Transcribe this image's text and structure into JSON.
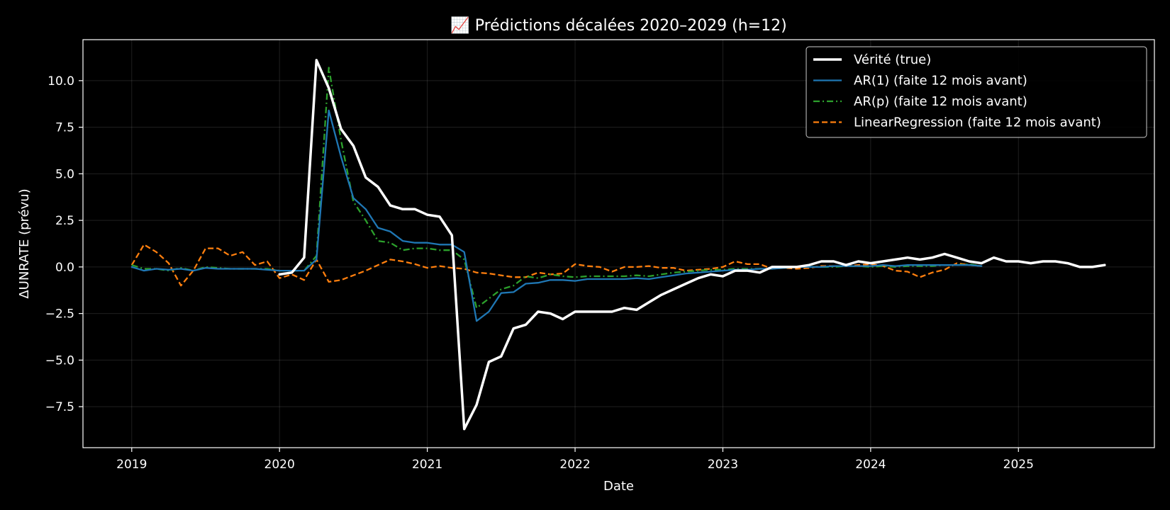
{
  "chart_data": {
    "type": "line",
    "title": "📈 Prédictions décalées 2020–2029 (h=12)",
    "xlabel": "Date",
    "ylabel": "ΔUNRATE (prévu)",
    "xlim": [
      2018.67,
      2025.92
    ],
    "ylim": [
      -9.7,
      12.2
    ],
    "xticks": [
      2019,
      2020,
      2021,
      2022,
      2023,
      2024,
      2025
    ],
    "xtick_labels": [
      "2019",
      "2020",
      "2021",
      "2022",
      "2023",
      "2024",
      "2025"
    ],
    "yticks": [
      -7.5,
      -5.0,
      -2.5,
      0.0,
      2.5,
      5.0,
      7.5,
      10.0
    ],
    "ytick_labels": [
      "−7.5",
      "−5.0",
      "−2.5",
      "0.0",
      "2.5",
      "5.0",
      "7.5",
      "10.0"
    ],
    "grid": true,
    "legend_position": "top-right",
    "series": [
      {
        "name": "Vérité (true)",
        "color": "#ffffff",
        "style": "solid",
        "x_start": 2020.0,
        "x_step": 0.0833333,
        "values": [
          -0.4,
          -0.3,
          0.5,
          11.1,
          9.6,
          7.4,
          6.5,
          4.8,
          4.3,
          3.3,
          3.1,
          3.1,
          2.8,
          2.7,
          1.7,
          -8.7,
          -7.4,
          -5.1,
          -4.8,
          -3.3,
          -3.1,
          -2.4,
          -2.5,
          -2.8,
          -2.4,
          -2.4,
          -2.4,
          -2.4,
          -2.2,
          -2.3,
          -1.9,
          -1.5,
          -1.2,
          -0.9,
          -0.6,
          -0.4,
          -0.5,
          -0.2,
          -0.2,
          -0.3,
          0.0,
          0.0,
          0.0,
          0.1,
          0.3,
          0.3,
          0.1,
          0.3,
          0.2,
          0.3,
          0.4,
          0.5,
          0.4,
          0.5,
          0.7,
          0.5,
          0.3,
          0.2,
          0.5,
          0.3,
          0.3,
          0.2,
          0.3,
          0.3,
          0.2,
          0.0,
          0.0,
          0.1
        ]
      },
      {
        "name": "AR(1) (faite 12 mois avant)",
        "color": "#1f77b4",
        "style": "solid",
        "x_start": 2019.0,
        "x_step": 0.0833333,
        "values": [
          0.0,
          -0.2,
          -0.1,
          -0.15,
          -0.1,
          -0.2,
          -0.05,
          -0.1,
          -0.1,
          -0.1,
          -0.1,
          -0.15,
          -0.2,
          -0.2,
          -0.2,
          0.4,
          8.4,
          5.9,
          3.7,
          3.1,
          2.1,
          1.9,
          1.4,
          1.3,
          1.3,
          1.2,
          1.2,
          0.8,
          -2.9,
          -2.4,
          -1.4,
          -1.35,
          -0.9,
          -0.85,
          -0.7,
          -0.7,
          -0.75,
          -0.65,
          -0.65,
          -0.65,
          -0.65,
          -0.6,
          -0.65,
          -0.55,
          -0.45,
          -0.35,
          -0.3,
          -0.25,
          -0.2,
          -0.15,
          -0.15,
          -0.1,
          -0.1,
          -0.05,
          0.0,
          0.0,
          0.0,
          0.05,
          0.05,
          0.05,
          0.05,
          0.1,
          0.05,
          0.1,
          0.1,
          0.1,
          0.1,
          0.1,
          0.1,
          0.05
        ]
      },
      {
        "name": "AR(p) (faite 12 mois avant)",
        "color": "#2ca02c",
        "style": "dashdot",
        "x_start": 2019.0,
        "x_step": 0.0833333,
        "values": [
          0.1,
          -0.1,
          -0.1,
          -0.2,
          -0.05,
          -0.2,
          0.0,
          -0.05,
          -0.1,
          -0.1,
          -0.1,
          -0.1,
          -0.2,
          -0.2,
          -0.2,
          0.6,
          10.7,
          6.8,
          3.5,
          2.5,
          1.4,
          1.3,
          0.9,
          1.0,
          1.0,
          0.9,
          0.9,
          0.4,
          -2.2,
          -1.7,
          -1.2,
          -1.0,
          -0.5,
          -0.6,
          -0.4,
          -0.5,
          -0.55,
          -0.5,
          -0.5,
          -0.5,
          -0.5,
          -0.45,
          -0.5,
          -0.4,
          -0.3,
          -0.25,
          -0.2,
          -0.15,
          -0.15,
          -0.1,
          -0.1,
          -0.1,
          -0.1,
          -0.05,
          0.0,
          0.0,
          0.0,
          0.0,
          0.05,
          0.05,
          0.0,
          0.05,
          0.0,
          0.05,
          0.05,
          0.05,
          0.1,
          0.1,
          0.15,
          0.05
        ]
      },
      {
        "name": "LinearRegression (faite 12 mois avant)",
        "color": "#ff7f0e",
        "style": "dashed",
        "x_start": 2019.0,
        "x_step": 0.0833333,
        "values": [
          0.1,
          1.2,
          0.8,
          0.2,
          -1.0,
          -0.2,
          1.0,
          1.0,
          0.6,
          0.8,
          0.1,
          0.3,
          -0.6,
          -0.4,
          -0.7,
          0.4,
          -0.8,
          -0.7,
          -0.45,
          -0.2,
          0.1,
          0.4,
          0.3,
          0.15,
          -0.05,
          0.05,
          -0.05,
          -0.1,
          -0.3,
          -0.35,
          -0.45,
          -0.55,
          -0.55,
          -0.3,
          -0.4,
          -0.35,
          0.15,
          0.05,
          0.0,
          -0.25,
          0.0,
          0.0,
          0.05,
          -0.05,
          -0.05,
          -0.2,
          -0.15,
          -0.1,
          0.0,
          0.3,
          0.15,
          0.15,
          -0.1,
          -0.05,
          -0.1,
          -0.05,
          0.05,
          0.05,
          0.05,
          0.1,
          0.15,
          0.05,
          -0.2,
          -0.25,
          -0.55,
          -0.3,
          -0.15,
          0.2,
          0.1,
          0.05
        ]
      }
    ]
  }
}
